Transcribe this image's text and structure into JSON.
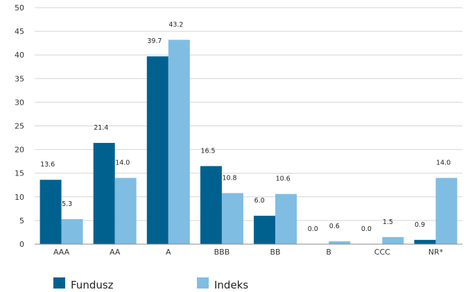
{
  "chart_data": {
    "type": "bar",
    "categories": [
      "AAA",
      "AA",
      "A",
      "BBB",
      "BB",
      "B",
      "CCC",
      "NR*"
    ],
    "series": [
      {
        "name": "Fundusz",
        "values": [
          13.6,
          21.4,
          39.7,
          16.5,
          6.0,
          0.0,
          0.0,
          0.9
        ],
        "labels": [
          "13.6",
          "21.4",
          "39.7",
          "16.5",
          "6.0",
          "0.0",
          "0.0",
          "0.9"
        ],
        "color": "#00618f"
      },
      {
        "name": "Indeks",
        "values": [
          5.3,
          14.0,
          43.2,
          10.8,
          10.6,
          0.6,
          1.5,
          14.0
        ],
        "labels": [
          "5.3",
          "14.0",
          "43.2",
          "10.8",
          "10.6",
          "0.6",
          "1.5",
          "14.0"
        ],
        "color": "#80bde3"
      }
    ],
    "ylim": [
      0,
      50
    ],
    "yticks": [
      "0",
      "5",
      "10",
      "15",
      "20",
      "25",
      "30",
      "35",
      "40",
      "45",
      "50"
    ],
    "grid": true,
    "legend_position": "bottom-left",
    "title": "",
    "xlabel": "",
    "ylabel": ""
  }
}
